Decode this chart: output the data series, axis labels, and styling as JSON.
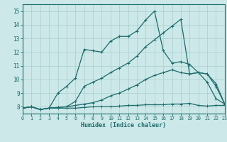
{
  "xlabel": "Humidex (Indice chaleur)",
  "xlim": [
    0,
    23
  ],
  "ylim": [
    7.5,
    15.5
  ],
  "yticks": [
    8,
    9,
    10,
    11,
    12,
    13,
    14,
    15
  ],
  "xticks": [
    0,
    1,
    2,
    3,
    4,
    5,
    6,
    7,
    8,
    9,
    10,
    11,
    12,
    13,
    14,
    15,
    16,
    17,
    18,
    19,
    20,
    21,
    22,
    23
  ],
  "bg_color": "#cce8e8",
  "line_color": "#1b6b6b",
  "grid_color": "#b8d8d8",
  "line1_y": [
    7.9,
    8.0,
    7.8,
    7.9,
    7.9,
    7.9,
    7.9,
    7.95,
    8.0,
    8.0,
    8.0,
    8.05,
    8.1,
    8.1,
    8.15,
    8.15,
    8.15,
    8.2,
    8.2,
    8.25,
    8.1,
    8.05,
    8.1,
    8.1
  ],
  "line2_y": [
    7.9,
    8.0,
    7.8,
    7.9,
    7.95,
    8.0,
    8.1,
    8.2,
    8.3,
    8.5,
    8.8,
    9.0,
    9.3,
    9.6,
    10.0,
    10.3,
    10.5,
    10.7,
    10.5,
    10.4,
    10.5,
    10.4,
    9.5,
    8.2
  ],
  "line3_y": [
    7.9,
    8.0,
    7.8,
    7.9,
    7.95,
    8.0,
    8.4,
    9.5,
    9.8,
    10.1,
    10.5,
    10.85,
    11.2,
    11.7,
    12.4,
    12.9,
    13.4,
    13.9,
    14.4,
    10.4,
    10.5,
    10.4,
    9.7,
    8.2
  ],
  "line4_y": [
    7.9,
    8.0,
    7.8,
    7.9,
    9.0,
    9.5,
    10.1,
    12.2,
    12.1,
    12.0,
    12.8,
    13.15,
    13.15,
    13.55,
    14.35,
    15.0,
    12.1,
    11.2,
    11.3,
    11.1,
    10.5,
    9.8,
    8.6,
    8.2
  ]
}
